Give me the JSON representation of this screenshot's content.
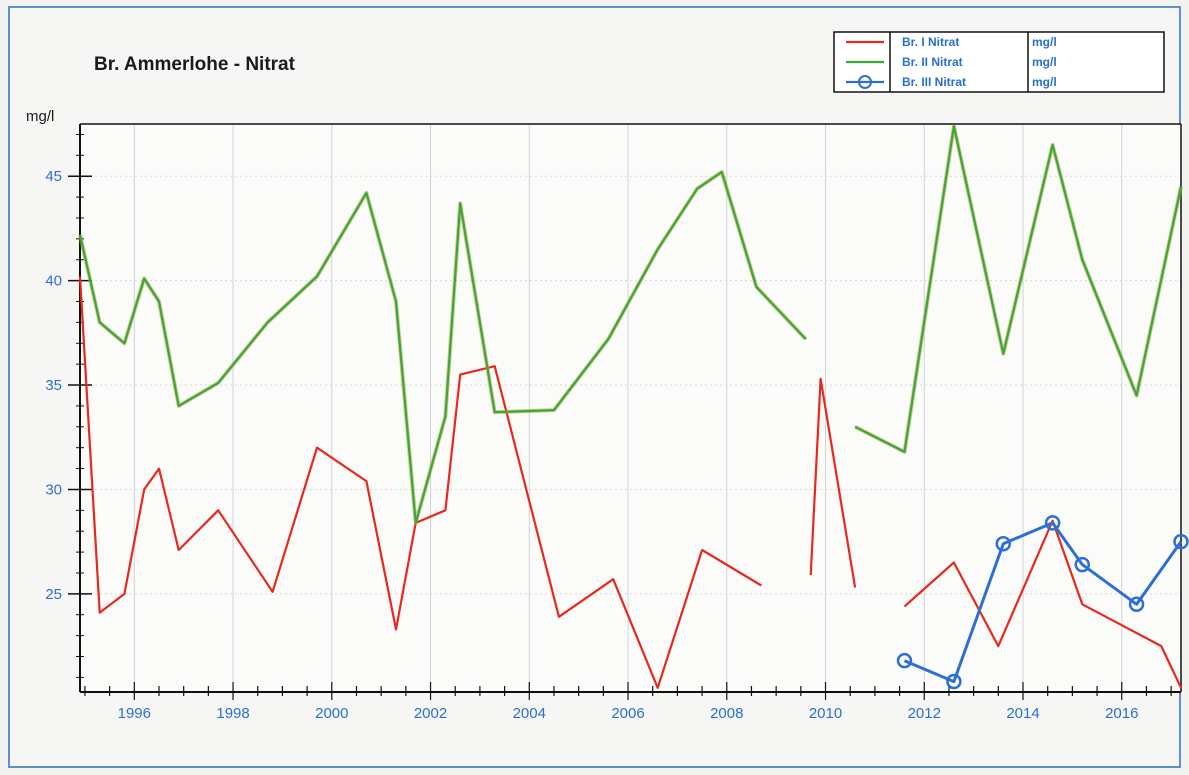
{
  "chart_data": {
    "type": "line",
    "title": "Br. Ammerlohe - Nitrat",
    "ylabel": "mg/l",
    "xlim": [
      1994.9,
      2017.2
    ],
    "ylim": [
      20.3,
      47.5
    ],
    "yticks": [
      25,
      30,
      35,
      40,
      45
    ],
    "xticks": [
      1996,
      1998,
      2000,
      2002,
      2004,
      2006,
      2008,
      2010,
      2012,
      2014,
      2016
    ],
    "grid": true,
    "legend_position": "top-right",
    "series": [
      {
        "name": "Br. I Nitrat",
        "unit": "mg/l",
        "color": "#e8281e",
        "marker": "none",
        "segments": [
          [
            [
              1994.9,
              40.2
            ],
            [
              1995.3,
              24.1
            ],
            [
              1995.8,
              25.0
            ],
            [
              1996.2,
              30.0
            ],
            [
              1996.5,
              31.0
            ],
            [
              1996.9,
              27.1
            ],
            [
              1997.7,
              29.0
            ],
            [
              1998.8,
              25.1
            ],
            [
              1999.7,
              32.0
            ],
            [
              2000.7,
              30.4
            ],
            [
              2001.3,
              23.3
            ],
            [
              2001.7,
              28.4
            ],
            [
              2002.3,
              29.0
            ],
            [
              2002.6,
              35.5
            ],
            [
              2003.3,
              35.9
            ],
            [
              2004.6,
              23.9
            ],
            [
              2005.7,
              25.7
            ],
            [
              2006.6,
              20.5
            ],
            [
              2007.5,
              27.1
            ],
            [
              2008.7,
              25.4
            ]
          ],
          [
            [
              2009.7,
              25.9
            ],
            [
              2009.9,
              35.3
            ],
            [
              2010.6,
              25.3
            ]
          ],
          [
            [
              2011.6,
              24.4
            ],
            [
              2012.6,
              26.5
            ],
            [
              2013.5,
              22.5
            ],
            [
              2014.6,
              28.5
            ],
            [
              2015.2,
              24.5
            ],
            [
              2016.8,
              22.5
            ],
            [
              2017.2,
              20.5
            ]
          ]
        ]
      },
      {
        "name": "Br. II Nitrat",
        "unit": "mg/l",
        "color": "#3aa83a",
        "marker": "none",
        "segments": [
          [
            [
              1994.9,
              42.2
            ],
            [
              1995.3,
              38.0
            ],
            [
              1995.8,
              37.0
            ],
            [
              1996.2,
              40.1
            ],
            [
              1996.5,
              39.0
            ],
            [
              1996.9,
              34.0
            ],
            [
              1997.7,
              35.1
            ],
            [
              1998.7,
              38.0
            ],
            [
              1999.7,
              40.2
            ],
            [
              2000.7,
              44.2
            ],
            [
              2001.3,
              39.0
            ],
            [
              2001.7,
              28.4
            ],
            [
              2002.3,
              33.5
            ],
            [
              2002.6,
              43.7
            ],
            [
              2003.3,
              33.7
            ],
            [
              2004.5,
              33.8
            ],
            [
              2005.6,
              37.2
            ],
            [
              2006.6,
              41.5
            ],
            [
              2007.4,
              44.4
            ],
            [
              2007.9,
              45.2
            ],
            [
              2008.6,
              39.7
            ],
            [
              2009.6,
              37.2
            ]
          ],
          [
            [
              2010.6,
              33.0
            ],
            [
              2011.6,
              31.8
            ],
            [
              2012.6,
              47.4
            ],
            [
              2013.6,
              36.5
            ],
            [
              2014.6,
              46.5
            ],
            [
              2015.2,
              41.0
            ],
            [
              2016.3,
              34.5
            ],
            [
              2017.2,
              44.5
            ]
          ]
        ]
      },
      {
        "name": "Br. III Nitrat",
        "unit": "mg/l",
        "color": "#2e6fd4",
        "marker": "circle",
        "segments": [
          [
            [
              2011.6,
              21.8
            ],
            [
              2012.6,
              20.8
            ],
            [
              2013.6,
              27.4
            ],
            [
              2014.6,
              28.4
            ],
            [
              2015.2,
              26.4
            ],
            [
              2016.3,
              24.5
            ],
            [
              2017.2,
              27.5
            ]
          ]
        ]
      }
    ]
  }
}
